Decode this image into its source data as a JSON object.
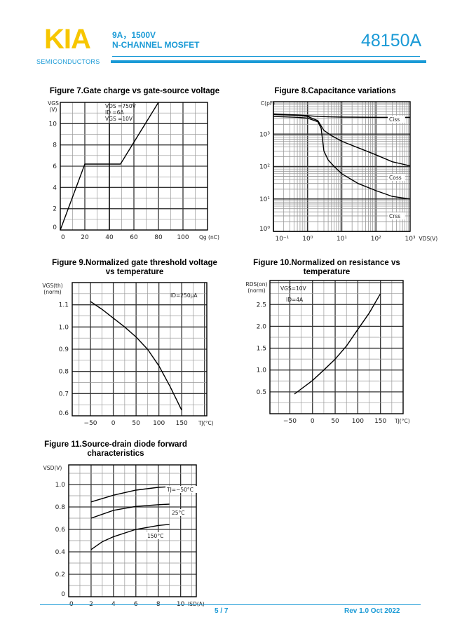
{
  "header": {
    "logo": "KIA",
    "logo_sub": "SEMICONDUCTORS",
    "rating": "9A，1500V",
    "type": "N-CHANNEL MOSFET",
    "part_number": "48150A",
    "colors": {
      "brand_yellow": "#f7c600",
      "brand_blue": "#1a9ad6"
    }
  },
  "footer": {
    "page": "5 / 7",
    "revision": "Rev 1.0 Oct   2022"
  },
  "chart_data": [
    {
      "type": "line",
      "title": "Figure 7.Gate charge vs gate-source voltage",
      "xlabel": "Qg (nC)",
      "ylabel": [
        "VGS",
        "(V)"
      ],
      "xlim": [
        0,
        120
      ],
      "ylim": [
        0,
        12
      ],
      "grid": true,
      "xticks": [
        0,
        20,
        40,
        60,
        80,
        100
      ],
      "xtick_labels": [
        "0",
        "20",
        "40",
        "60",
        "80",
        "100"
      ],
      "yticks": [
        0,
        2,
        4,
        6,
        8,
        10
      ],
      "ytick_labels": [
        "0",
        "2",
        "4",
        "6",
        "8",
        "10"
      ],
      "annotations": [
        "VDS =750V",
        "ID =6A",
        "VGS =10V"
      ],
      "series": [
        {
          "x": [
            0,
            20,
            49,
            80
          ],
          "y": [
            0,
            6.2,
            6.2,
            12
          ]
        },
        {
          "x": [
            40,
            40
          ],
          "y": [
            0,
            10
          ]
        }
      ]
    },
    {
      "type": "line",
      "title": "Figure 8.Capacitance variations",
      "xlabel": "VDS(V)",
      "ylabel": [
        "C(pF)"
      ],
      "xscale": "log",
      "yscale": "log",
      "xlim": [
        0.1,
        1000
      ],
      "ylim": [
        1,
        10000
      ],
      "grid": true,
      "xticks": [
        0.1,
        1,
        10,
        100,
        1000
      ],
      "xtick_labels": [
        "10⁻¹",
        "10⁰",
        "10¹",
        "10²",
        "10³"
      ],
      "yticks": [
        1,
        10,
        100,
        1000
      ],
      "ytick_labels": [
        "10⁰",
        "10¹",
        "10²",
        "10³"
      ],
      "series": [
        {
          "name": "Ciss",
          "x": [
            0.1,
            0.5,
            1,
            2,
            5,
            10,
            100,
            1000
          ],
          "y": [
            4200,
            3900,
            3700,
            3500,
            3400,
            3350,
            3300,
            3300
          ]
        },
        {
          "name": "Coss",
          "x": [
            0.1,
            0.5,
            1,
            2,
            3,
            5,
            10,
            30,
            100,
            300,
            1000
          ],
          "y": [
            4000,
            3800,
            3500,
            2600,
            1300,
            900,
            600,
            380,
            230,
            140,
            105
          ]
        },
        {
          "name": "Crss",
          "x": [
            0.1,
            0.5,
            1,
            2,
            2.5,
            3,
            4,
            6,
            10,
            30,
            100,
            300,
            1000
          ],
          "y": [
            3500,
            3300,
            3100,
            2400,
            1500,
            300,
            160,
            100,
            60,
            30,
            18,
            12,
            10
          ]
        }
      ]
    },
    {
      "type": "line",
      "title": [
        "Figure 9.Normalized gate threshold voltage",
        "vs temperature"
      ],
      "xlabel": "TJ(°C)",
      "ylabel": [
        "VGS(th)",
        "(norm)"
      ],
      "xlim": [
        -90,
        205
      ],
      "ylim": [
        0.6,
        1.2
      ],
      "grid": true,
      "xticks": [
        -50,
        0,
        50,
        100,
        150
      ],
      "xtick_labels": [
        "−50",
        "0",
        "50",
        "100",
        "150"
      ],
      "yticks": [
        0.6,
        0.7,
        0.8,
        0.9,
        1.0,
        1.1
      ],
      "ytick_labels": [
        "0.6",
        "0.7",
        "0.8",
        "0.9",
        "1.0",
        "1.1"
      ],
      "annotations": [
        "ID=250μA"
      ],
      "series": [
        {
          "x": [
            -50,
            -25,
            0,
            25,
            50,
            75,
            100,
            125,
            150
          ],
          "y": [
            1.115,
            1.08,
            1.04,
            1.0,
            0.955,
            0.9,
            0.825,
            0.73,
            0.625
          ]
        }
      ]
    },
    {
      "type": "line",
      "title": [
        "Figure 10.Normalized on resistance vs",
        "temperature"
      ],
      "xlabel": "TJ(°C)",
      "ylabel": [
        "RDS(on)",
        "(norm)"
      ],
      "xlim": [
        -94,
        200
      ],
      "ylim": [
        0,
        3.05
      ],
      "grid": true,
      "xticks": [
        -50,
        0,
        50,
        100,
        150
      ],
      "xtick_labels": [
        "−50",
        "0",
        "50",
        "100",
        "150"
      ],
      "yticks": [
        0.5,
        1.0,
        1.5,
        2.0,
        2.5
      ],
      "ytick_labels": [
        "0.5",
        "1.0",
        "1.5",
        "2.0",
        "2.5"
      ],
      "annotations": [
        "VGS=10V",
        "ID=4A"
      ],
      "series": [
        {
          "x": [
            -40,
            0,
            25,
            50,
            75,
            100,
            125,
            150
          ],
          "y": [
            0.45,
            0.76,
            1.0,
            1.25,
            1.55,
            1.93,
            2.3,
            2.75
          ]
        }
      ]
    },
    {
      "type": "line",
      "title": [
        "Figure 11.Source-drain diode forward",
        "characteristics"
      ],
      "xlabel": "ISD(A)",
      "ylabel": [
        "VSD(V)"
      ],
      "xlim": [
        0,
        11.4
      ],
      "ylim": [
        0,
        1.175
      ],
      "grid": true,
      "xticks": [
        0,
        2,
        4,
        6,
        8,
        10
      ],
      "xtick_labels": [
        "0",
        "2",
        "4",
        "6",
        "8",
        "10"
      ],
      "yticks": [
        0,
        0.2,
        0.4,
        0.6,
        0.8,
        1.0
      ],
      "ytick_labels": [
        "0",
        "0.2",
        "0.4",
        "0.6",
        "0.8",
        "1.0"
      ],
      "series": [
        {
          "name": "TJ=−50°C",
          "x": [
            2,
            4,
            6,
            8,
            9
          ],
          "y": [
            0.845,
            0.905,
            0.95,
            0.975,
            0.98
          ]
        },
        {
          "name": "25°C",
          "x": [
            2,
            4,
            6,
            8,
            9
          ],
          "y": [
            0.7,
            0.77,
            0.805,
            0.82,
            0.825
          ]
        },
        {
          "name": "150°C",
          "x": [
            2,
            3,
            4,
            6,
            8,
            9
          ],
          "y": [
            0.42,
            0.49,
            0.535,
            0.6,
            0.635,
            0.645
          ]
        }
      ]
    }
  ]
}
